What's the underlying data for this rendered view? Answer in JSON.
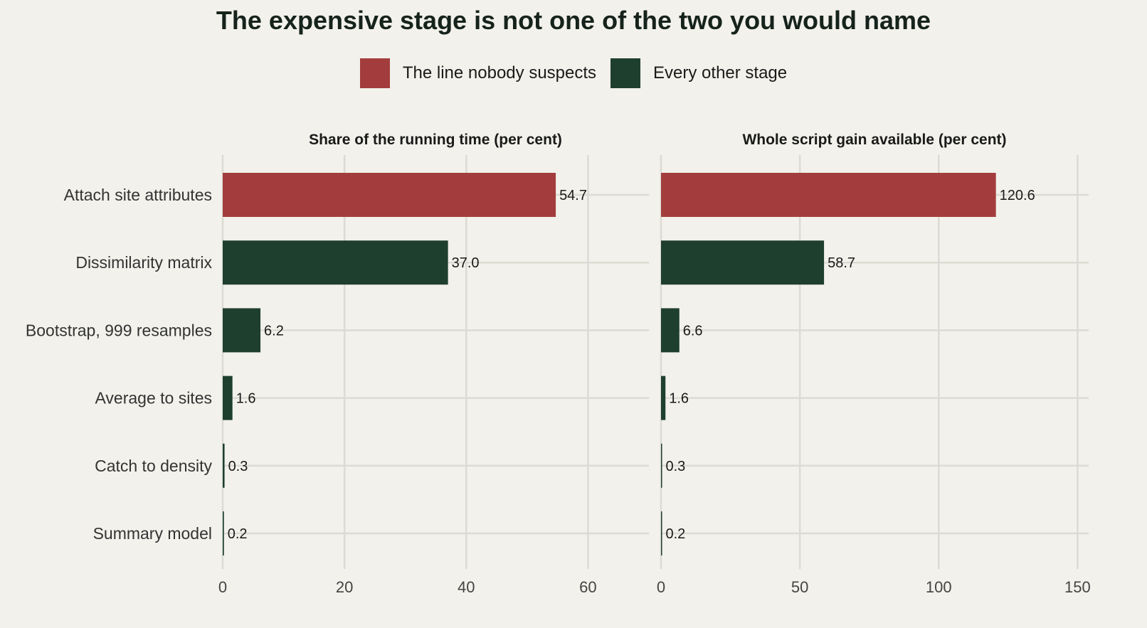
{
  "title": "The expensive stage is not one of the two you would name",
  "legend": [
    {
      "label": "The line nobody suspects",
      "color": "#a33d3d"
    },
    {
      "label": "Every other stage",
      "color": "#1f3f2e"
    }
  ],
  "colors": {
    "background": "#f2f1eb",
    "grid": "#dcdbd3",
    "highlight": "#a33d3d",
    "other": "#1f3f2e"
  },
  "chart_data": {
    "type": "bar",
    "orientation": "horizontal",
    "categories": [
      "Attach site attributes",
      "Dissimilarity matrix",
      "Bootstrap, 999 resamples",
      "Average to sites",
      "Catch to density",
      "Summary model"
    ],
    "highlight_index": 0,
    "grid": true,
    "legend_position": "top",
    "panels": [
      {
        "title": "Share of the running time (per cent)",
        "values": [
          54.7,
          37.0,
          6.2,
          1.6,
          0.3,
          0.2
        ],
        "value_labels": [
          "54.7",
          "37.0",
          "6.2",
          "1.6",
          "0.3",
          "0.2"
        ],
        "xlim": [
          0,
          70
        ],
        "ticks": [
          0,
          20,
          40,
          60
        ]
      },
      {
        "title": "Whole script gain available (per cent)",
        "values": [
          120.6,
          58.7,
          6.6,
          1.6,
          0.3,
          0.2
        ],
        "value_labels": [
          "120.6",
          "58.7",
          "6.6",
          "1.6",
          "0.3",
          "0.2"
        ],
        "xlim": [
          0,
          154
        ],
        "ticks": [
          0,
          50,
          100,
          150
        ]
      }
    ]
  }
}
